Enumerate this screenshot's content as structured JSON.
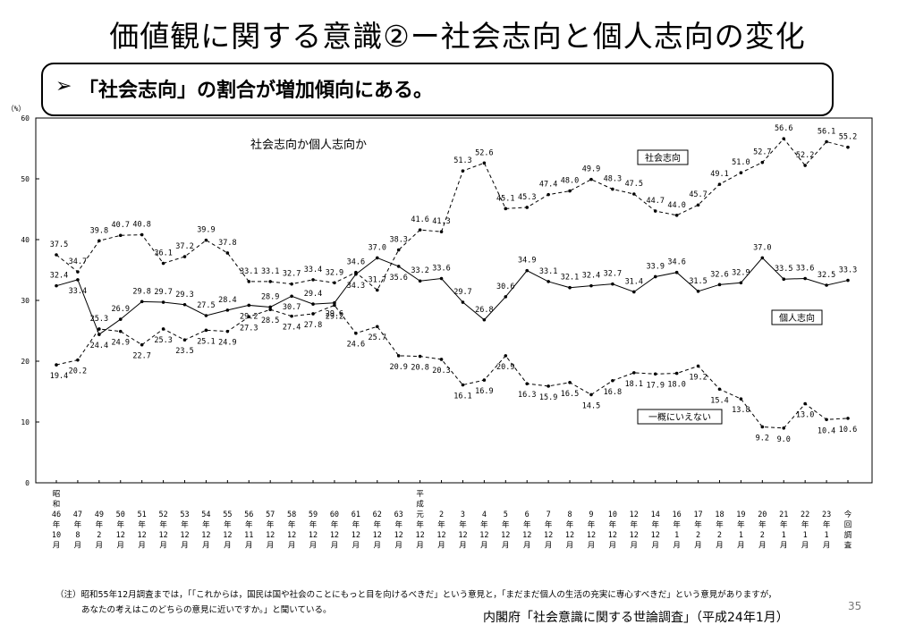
{
  "slide": {
    "title": "価値観に関する意識②ー社会志向と個人志向の変化",
    "callout_marker": "➢",
    "callout_text": "「社会志向」の割合が増加傾向にある。",
    "note_line1": "（注）昭和55年12月調査までは，「「これからは，国民は国や社会のことにもっと目を向けるべきだ」という意見と，「まだまだ個人の生活の充実に専心すべきだ」という意見がありますが，",
    "note_line2": "あなたの考えはこのどちらの意見に近いですか。」と聞いている。",
    "source": "内閣府「社会意識に関する世論調査」（平成24年1月）",
    "page_number": "35"
  },
  "chart_data": {
    "type": "line",
    "title": "社会志向か個人志向か",
    "ylabel": "（%）",
    "ylim": [
      0,
      60
    ],
    "yticks": [
      0,
      10,
      20,
      30,
      40,
      50,
      60
    ],
    "grid": false,
    "categories": [
      [
        "昭",
        "和",
        "46",
        "年",
        "10",
        "月"
      ],
      [
        "47",
        "年",
        "8",
        "月"
      ],
      [
        "49",
        "年",
        "2",
        "月"
      ],
      [
        "50",
        "年",
        "12",
        "月"
      ],
      [
        "51",
        "年",
        "12",
        "月"
      ],
      [
        "52",
        "年",
        "12",
        "月"
      ],
      [
        "53",
        "年",
        "12",
        "月"
      ],
      [
        "54",
        "年",
        "12",
        "月"
      ],
      [
        "55",
        "年",
        "12",
        "月"
      ],
      [
        "56",
        "年",
        "11",
        "月"
      ],
      [
        "57",
        "年",
        "12",
        "月"
      ],
      [
        "58",
        "年",
        "12",
        "月"
      ],
      [
        "59",
        "年",
        "12",
        "月"
      ],
      [
        "60",
        "年",
        "12",
        "月"
      ],
      [
        "61",
        "年",
        "12",
        "月"
      ],
      [
        "62",
        "年",
        "12",
        "月"
      ],
      [
        "63",
        "年",
        "12",
        "月"
      ],
      [
        "平",
        "成",
        "元",
        "年",
        "12",
        "月"
      ],
      [
        "2",
        "年",
        "12",
        "月"
      ],
      [
        "3",
        "年",
        "12",
        "月"
      ],
      [
        "4",
        "年",
        "12",
        "月"
      ],
      [
        "5",
        "年",
        "12",
        "月"
      ],
      [
        "6",
        "年",
        "12",
        "月"
      ],
      [
        "7",
        "年",
        "12",
        "月"
      ],
      [
        "8",
        "年",
        "12",
        "月"
      ],
      [
        "9",
        "年",
        "12",
        "月"
      ],
      [
        "10",
        "年",
        "12",
        "月"
      ],
      [
        "12",
        "年",
        "12",
        "月"
      ],
      [
        "14",
        "年",
        "12",
        "月"
      ],
      [
        "16",
        "年",
        "1",
        "月"
      ],
      [
        "17",
        "年",
        "2",
        "月"
      ],
      [
        "18",
        "年",
        "2",
        "月"
      ],
      [
        "19",
        "年",
        "1",
        "月"
      ],
      [
        "20",
        "年",
        "2",
        "月"
      ],
      [
        "21",
        "年",
        "1",
        "月"
      ],
      [
        "22",
        "年",
        "1",
        "月"
      ],
      [
        "23",
        "年",
        "1",
        "月"
      ],
      [
        "今",
        "回",
        "調",
        "査"
      ]
    ],
    "series": [
      {
        "name": "社会志向",
        "style": "dashed",
        "values": [
          37.5,
          34.7,
          39.8,
          40.7,
          40.8,
          36.1,
          37.2,
          39.9,
          37.8,
          33.1,
          33.1,
          32.7,
          33.4,
          32.9,
          34.6,
          31.7,
          38.3,
          41.6,
          41.3,
          51.3,
          52.6,
          45.1,
          45.3,
          47.4,
          48.0,
          49.9,
          48.3,
          47.5,
          44.7,
          44.0,
          45.7,
          49.1,
          51.0,
          52.7,
          56.6,
          52.2,
          56.1,
          55.2
        ]
      },
      {
        "name": "個人志向",
        "style": "solid",
        "values": [
          32.4,
          33.4,
          24.4,
          26.9,
          29.8,
          29.7,
          29.3,
          27.5,
          28.4,
          29.2,
          28.9,
          30.7,
          29.4,
          29.6,
          34.3,
          37.0,
          35.6,
          33.2,
          33.6,
          29.7,
          26.8,
          30.6,
          34.9,
          33.1,
          32.1,
          32.4,
          32.7,
          31.4,
          33.9,
          34.6,
          31.5,
          32.6,
          32.9,
          37.0,
          33.5,
          33.6,
          32.5,
          33.3
        ]
      },
      {
        "name": "一概にいえない",
        "style": "dashed",
        "values": [
          19.4,
          20.2,
          25.3,
          24.9,
          22.7,
          25.3,
          23.5,
          25.1,
          24.9,
          27.3,
          28.5,
          27.4,
          27.8,
          29.2,
          24.6,
          25.7,
          20.9,
          20.8,
          20.3,
          16.1,
          16.9,
          20.9,
          16.3,
          15.9,
          16.5,
          14.5,
          16.8,
          18.1,
          17.9,
          18.0,
          19.2,
          15.4,
          13.8,
          9.2,
          9.0,
          13.0,
          10.4,
          10.6
        ]
      }
    ],
    "legend_boxes": [
      "社会志向",
      "個人志向",
      "一概にいえない"
    ]
  }
}
